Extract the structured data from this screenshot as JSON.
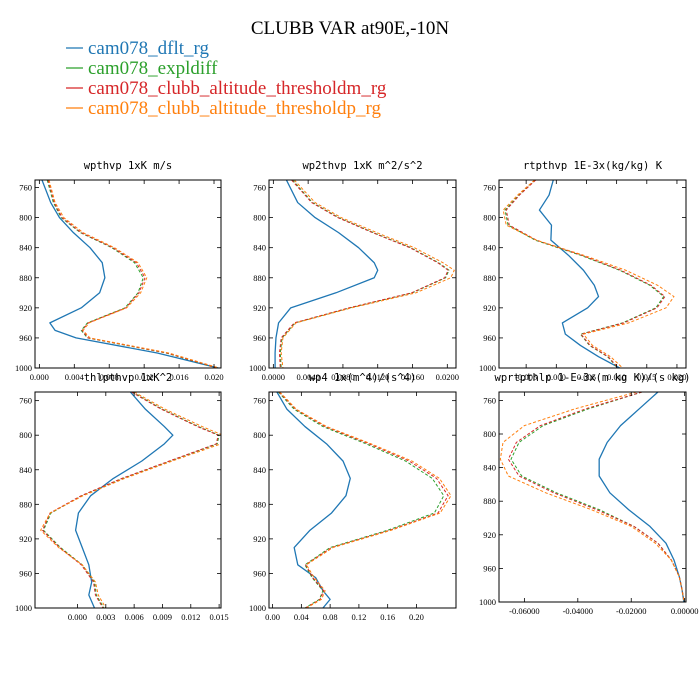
{
  "figure": {
    "title": "CLUBB VAR at90E,-10N"
  },
  "legend": [
    {
      "label": "cam078_dflt_rg",
      "color": "#1f77b4",
      "dash": "solid"
    },
    {
      "label": "cam078_expldiff",
      "color": "#2ca02c",
      "dash": "dashed"
    },
    {
      "label": "cam078_clubb_altitude_thresholdm_rg",
      "color": "#d62728",
      "dash": "dashed"
    },
    {
      "label": "cam078_clubb_altitude_thresholdp_rg",
      "color": "#ff7f0e",
      "dash": "dashed"
    }
  ],
  "chart_data": [
    {
      "type": "line",
      "title": "wpthvp  1xK m/s",
      "xlim": [
        -0.0005,
        0.0208
      ],
      "ylim": [
        1000,
        750
      ],
      "xticks": [
        0.0,
        0.004,
        0.008,
        0.012,
        0.016,
        0.02
      ],
      "xtick_labels": [
        "0.000",
        "0.004",
        "0.008",
        "0.012",
        "0.016",
        "0.020"
      ],
      "yticks": [
        760,
        800,
        840,
        880,
        920,
        960,
        1000
      ],
      "ytick_labels": [
        "760",
        "800",
        "840",
        "880",
        "920",
        "960",
        "1000"
      ],
      "grid": false,
      "y": [
        750,
        780,
        800,
        820,
        840,
        860,
        880,
        900,
        920,
        940,
        950,
        960,
        980,
        1000
      ],
      "series": [
        {
          "name": "cam078_dflt_rg",
          "x": [
            0.0003,
            0.0013,
            0.0023,
            0.0039,
            0.0058,
            0.0072,
            0.0075,
            0.0069,
            0.0048,
            0.0012,
            0.0018,
            0.0042,
            0.0135,
            0.0205
          ]
        },
        {
          "name": "cam078_expldiff",
          "x": [
            0.0009,
            0.0016,
            0.0025,
            0.0047,
            0.0083,
            0.0109,
            0.0119,
            0.0113,
            0.0098,
            0.0055,
            0.0048,
            0.0055,
            0.0145,
            0.0203
          ]
        },
        {
          "name": "cam078_clubb_altitude_thresholdm_rg",
          "x": [
            0.001,
            0.0017,
            0.0026,
            0.0048,
            0.0084,
            0.0111,
            0.0121,
            0.0114,
            0.0099,
            0.0056,
            0.0049,
            0.0056,
            0.0146,
            0.0204
          ]
        },
        {
          "name": "cam078_clubb_altitude_thresholdp_rg",
          "x": [
            0.0011,
            0.0018,
            0.0028,
            0.005,
            0.0086,
            0.0113,
            0.0123,
            0.0116,
            0.01,
            0.0057,
            0.005,
            0.0058,
            0.0148,
            0.0206
          ]
        }
      ]
    },
    {
      "type": "line",
      "title": "wp2thvp  1xK m^2/s^2",
      "xlim": [
        -0.0005,
        0.021
      ],
      "ylim": [
        1000,
        750
      ],
      "xticks": [
        0.0,
        0.004,
        0.008,
        0.012,
        0.016,
        0.02
      ],
      "xtick_labels": [
        "0.0000",
        "0.0040",
        "0.0080",
        "0.0120",
        "0.0160",
        "0.0200"
      ],
      "yticks": [
        760,
        800,
        840,
        880,
        920,
        960,
        1000
      ],
      "ytick_labels": [
        "760",
        "800",
        "840",
        "880",
        "920",
        "960",
        "1000"
      ],
      "grid": false,
      "y": [
        750,
        780,
        800,
        820,
        840,
        860,
        870,
        880,
        900,
        920,
        940,
        960,
        980,
        1000
      ],
      "series": [
        {
          "name": "cam078_dflt_rg",
          "x": [
            0.0015,
            0.0028,
            0.0048,
            0.0075,
            0.0098,
            0.0116,
            0.012,
            0.0116,
            0.0072,
            0.002,
            0.0006,
            0.0003,
            0.0002,
            0.0002
          ]
        },
        {
          "name": "cam078_expldiff",
          "x": [
            0.0022,
            0.0045,
            0.0075,
            0.0115,
            0.0158,
            0.019,
            0.0202,
            0.0198,
            0.016,
            0.0088,
            0.0025,
            0.001,
            0.0008,
            0.0009
          ]
        },
        {
          "name": "cam078_clubb_altitude_thresholdm_rg",
          "x": [
            0.0021,
            0.0044,
            0.0074,
            0.0114,
            0.0157,
            0.0189,
            0.0201,
            0.0197,
            0.0159,
            0.0087,
            0.0024,
            0.0009,
            0.0007,
            0.0008
          ]
        },
        {
          "name": "cam078_clubb_altitude_thresholdp_rg",
          "x": [
            0.0024,
            0.0048,
            0.0078,
            0.0119,
            0.0162,
            0.0195,
            0.0208,
            0.0204,
            0.0164,
            0.009,
            0.0026,
            0.0011,
            0.0009,
            0.0011
          ]
        }
      ]
    },
    {
      "type": "line",
      "title": "rtpthvp  1E-3x(kg/kg) K",
      "xlim": [
        -0.0095,
        0.0215
      ],
      "ylim": [
        1000,
        750
      ],
      "xticks": [
        -0.005,
        0.0,
        0.005,
        0.01,
        0.015,
        0.02
      ],
      "xtick_labels": [
        "-0.005",
        "0.000",
        "0.005",
        "0.010",
        "0.015",
        "0.020"
      ],
      "yticks": [
        760,
        800,
        840,
        880,
        920,
        960,
        1000
      ],
      "ytick_labels": [
        "760",
        "800",
        "840",
        "880",
        "920",
        "960",
        "1000"
      ],
      "grid": false,
      "y": [
        750,
        770,
        790,
        810,
        830,
        850,
        870,
        890,
        905,
        920,
        940,
        955,
        970,
        985,
        1000
      ],
      "series": [
        {
          "name": "cam078_dflt_rg",
          "x": [
            -0.0005,
            -0.0012,
            -0.0028,
            -0.0008,
            -0.0009,
            0.002,
            0.0045,
            0.0063,
            0.007,
            0.0052,
            0.001,
            0.0015,
            0.004,
            0.007,
            0.0105
          ]
        },
        {
          "name": "cam078_expldiff",
          "x": [
            -0.0035,
            -0.0062,
            -0.0085,
            -0.008,
            -0.0035,
            0.004,
            0.0105,
            0.0155,
            0.0178,
            0.0165,
            0.011,
            0.004,
            0.0055,
            0.0085,
            0.0102
          ]
        },
        {
          "name": "cam078_clubb_altitude_thresholdm_rg",
          "x": [
            -0.0034,
            -0.0061,
            -0.0083,
            -0.0078,
            -0.0033,
            0.0042,
            0.0107,
            0.0157,
            0.018,
            0.0167,
            0.0112,
            0.0041,
            0.0056,
            0.0086,
            0.0103
          ]
        },
        {
          "name": "cam078_clubb_altitude_thresholdp_rg",
          "x": [
            -0.0036,
            -0.0064,
            -0.0088,
            -0.0083,
            -0.0033,
            0.0045,
            0.0115,
            0.0168,
            0.0195,
            0.0182,
            0.012,
            0.0045,
            0.006,
            0.009,
            0.011
          ]
        }
      ]
    },
    {
      "type": "line",
      "title": "thlpthvp  1xK^2",
      "xlim": [
        -0.0045,
        0.0152
      ],
      "ylim": [
        1000,
        750
      ],
      "xticks": [
        0.0,
        0.003,
        0.006,
        0.009,
        0.012,
        0.015
      ],
      "xtick_labels": [
        "0.000",
        "0.003",
        "0.006",
        "0.009",
        "0.012",
        "0.015"
      ],
      "yticks": [
        760,
        800,
        840,
        880,
        920,
        960,
        1000
      ],
      "ytick_labels": [
        "760",
        "800",
        "840",
        "880",
        "920",
        "960",
        "1000"
      ],
      "grid": false,
      "y": [
        750,
        770,
        790,
        800,
        810,
        830,
        850,
        870,
        890,
        910,
        930,
        950,
        970,
        985,
        1000
      ],
      "series": [
        {
          "name": "cam078_dflt_rg",
          "x": [
            0.0056,
            0.0072,
            0.0092,
            0.0101,
            0.0092,
            0.0068,
            0.0038,
            0.0014,
            0.0001,
            -0.0002,
            0.0005,
            0.0012,
            0.0015,
            0.0012,
            0.0018
          ]
        },
        {
          "name": "cam078_expldiff",
          "x": [
            0.0058,
            0.009,
            0.0128,
            0.015,
            0.0148,
            0.0098,
            0.0048,
            0.0005,
            -0.0028,
            -0.0036,
            -0.0018,
            0.0005,
            0.0018,
            0.002,
            0.0028
          ]
        },
        {
          "name": "cam078_clubb_altitude_thresholdm_rg",
          "x": [
            0.0057,
            0.0089,
            0.0127,
            0.0149,
            0.0147,
            0.0097,
            0.0047,
            0.0004,
            -0.0029,
            -0.0037,
            -0.0019,
            0.0004,
            0.0017,
            0.0019,
            0.0027
          ]
        },
        {
          "name": "cam078_clubb_altitude_thresholdp_rg",
          "x": [
            0.006,
            0.0093,
            0.0132,
            0.0154,
            0.0152,
            0.01,
            0.005,
            0.0006,
            -0.0029,
            -0.0039,
            -0.002,
            0.0005,
            0.0019,
            0.0022,
            0.003
          ]
        }
      ]
    },
    {
      "type": "line",
      "title": "wp4  1x(m^4)/(s^4)",
      "xlim": [
        -0.005,
        0.255
      ],
      "ylim": [
        1000,
        750
      ],
      "xticks": [
        0.0,
        0.04,
        0.08,
        0.12,
        0.16,
        0.2
      ],
      "xtick_labels": [
        "0.00",
        "0.04",
        "0.08",
        "0.12",
        "0.16",
        "0.20"
      ],
      "yticks": [
        760,
        800,
        840,
        880,
        920,
        960,
        1000
      ],
      "ytick_labels": [
        "760",
        "800",
        "840",
        "880",
        "920",
        "960",
        "1000"
      ],
      "grid": false,
      "y": [
        750,
        770,
        790,
        810,
        830,
        850,
        870,
        890,
        910,
        930,
        950,
        965,
        980,
        990,
        1000
      ],
      "series": [
        {
          "name": "cam078_dflt_rg",
          "x": [
            0.006,
            0.02,
            0.045,
            0.075,
            0.098,
            0.108,
            0.102,
            0.082,
            0.052,
            0.03,
            0.035,
            0.06,
            0.07,
            0.08,
            0.07
          ]
        },
        {
          "name": "cam078_expldiff",
          "x": [
            0.008,
            0.03,
            0.07,
            0.13,
            0.185,
            0.222,
            0.238,
            0.225,
            0.16,
            0.08,
            0.045,
            0.055,
            0.07,
            0.065,
            0.045
          ]
        },
        {
          "name": "cam078_clubb_altitude_thresholdm_rg",
          "x": [
            0.009,
            0.032,
            0.073,
            0.134,
            0.19,
            0.228,
            0.244,
            0.23,
            0.163,
            0.082,
            0.046,
            0.056,
            0.071,
            0.066,
            0.046
          ]
        },
        {
          "name": "cam078_clubb_altitude_thresholdp_rg",
          "x": [
            0.01,
            0.033,
            0.075,
            0.137,
            0.194,
            0.232,
            0.248,
            0.233,
            0.165,
            0.084,
            0.047,
            0.058,
            0.073,
            0.068,
            0.047
          ]
        }
      ]
    },
    {
      "type": "line",
      "title": "wprtpthlp  1-E-3x(m kg K)/(s kg)",
      "xlim": [
        -0.0695,
        0.0005
      ],
      "ylim": [
        1000,
        750
      ],
      "xticks": [
        -0.06,
        -0.04,
        -0.02,
        0.0
      ],
      "xtick_labels": [
        "-0.06000",
        "-0.04000",
        "-0.02000",
        "0.00000"
      ],
      "yticks": [
        760,
        800,
        840,
        880,
        920,
        960,
        1000
      ],
      "ytick_labels": [
        "760",
        "800",
        "840",
        "880",
        "920",
        "960",
        "1000"
      ],
      "grid": false,
      "y": [
        750,
        770,
        790,
        810,
        830,
        850,
        870,
        890,
        910,
        930,
        950,
        970,
        985,
        1000
      ],
      "series": [
        {
          "name": "cam078_dflt_rg",
          "x": [
            -0.01,
            -0.017,
            -0.024,
            -0.029,
            -0.032,
            -0.032,
            -0.028,
            -0.021,
            -0.013,
            -0.007,
            -0.004,
            -0.002,
            -0.001,
            -0.0003
          ]
        },
        {
          "name": "cam078_expldiff",
          "x": [
            -0.016,
            -0.036,
            -0.053,
            -0.062,
            -0.065,
            -0.061,
            -0.048,
            -0.032,
            -0.019,
            -0.01,
            -0.005,
            -0.002,
            -0.001,
            -0.0002
          ]
        },
        {
          "name": "cam078_clubb_altitude_thresholdm_rg",
          "x": [
            -0.016,
            -0.037,
            -0.054,
            -0.063,
            -0.066,
            -0.062,
            -0.049,
            -0.033,
            -0.019,
            -0.01,
            -0.005,
            -0.002,
            -0.001,
            -0.0002
          ]
        },
        {
          "name": "cam078_clubb_altitude_thresholdp_rg",
          "x": [
            -0.018,
            -0.041,
            -0.06,
            -0.068,
            -0.069,
            -0.066,
            -0.052,
            -0.035,
            -0.02,
            -0.011,
            -0.005,
            -0.002,
            -0.001,
            -0.0002
          ]
        }
      ]
    }
  ]
}
